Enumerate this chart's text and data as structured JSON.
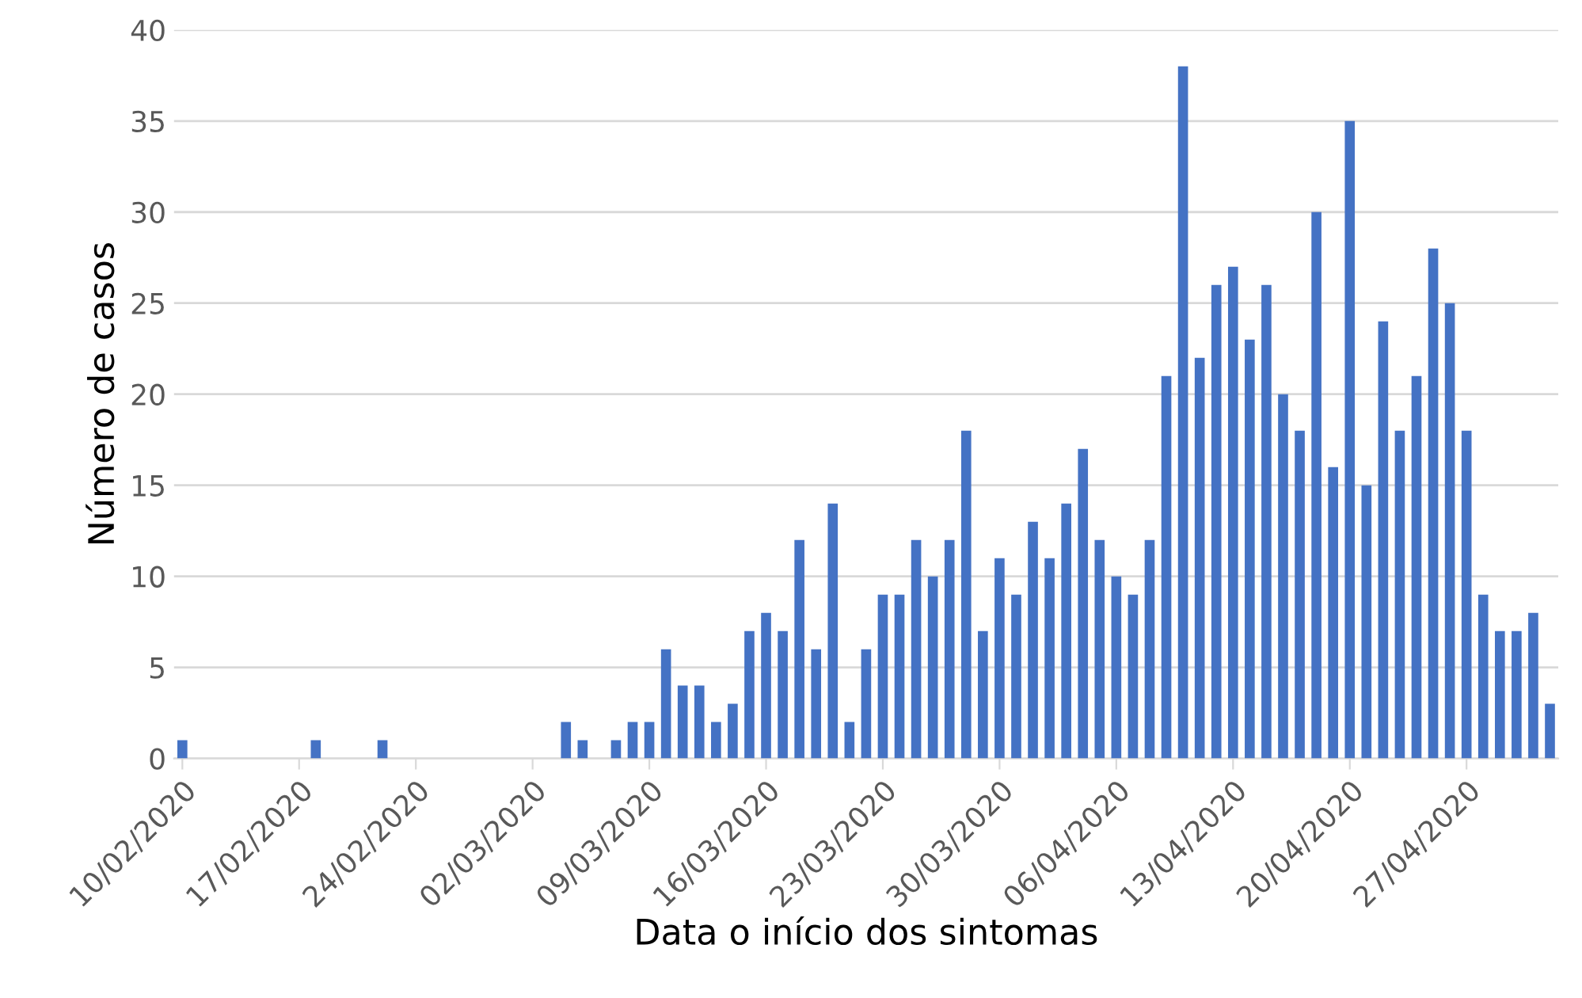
{
  "chart_data": {
    "type": "bar",
    "xlabel": "Data o início dos sintomas",
    "ylabel": "Número de casos",
    "color": "#4472c4",
    "x": [
      "2020-02-10",
      "2020-02-18",
      "2020-02-22",
      "2020-03-04",
      "2020-03-05",
      "2020-03-07",
      "2020-03-08",
      "2020-03-09",
      "2020-03-10",
      "2020-03-11",
      "2020-03-12",
      "2020-03-13",
      "2020-03-14",
      "2020-03-15",
      "2020-03-16",
      "2020-03-17",
      "2020-03-18",
      "2020-03-19",
      "2020-03-20",
      "2020-03-21",
      "2020-03-22",
      "2020-03-23",
      "2020-03-24",
      "2020-03-25",
      "2020-03-26",
      "2020-03-27",
      "2020-03-28",
      "2020-03-29",
      "2020-03-30",
      "2020-03-31",
      "2020-04-01",
      "2020-04-02",
      "2020-04-03",
      "2020-04-04",
      "2020-04-05",
      "2020-04-06",
      "2020-04-07",
      "2020-04-08",
      "2020-04-09",
      "2020-04-10",
      "2020-04-11",
      "2020-04-12",
      "2020-04-13",
      "2020-04-14",
      "2020-04-15",
      "2020-04-16",
      "2020-04-17",
      "2020-04-18",
      "2020-04-19",
      "2020-04-20",
      "2020-04-21",
      "2020-04-22",
      "2020-04-23",
      "2020-04-24",
      "2020-04-25",
      "2020-04-26",
      "2020-04-27",
      "2020-04-28",
      "2020-04-29",
      "2020-04-30",
      "2020-05-01",
      "2020-05-02"
    ],
    "values": [
      1,
      1,
      1,
      2,
      1,
      1,
      2,
      2,
      6,
      4,
      4,
      2,
      3,
      7,
      8,
      7,
      12,
      6,
      14,
      2,
      6,
      9,
      9,
      12,
      10,
      12,
      18,
      7,
      11,
      9,
      13,
      11,
      14,
      17,
      12,
      10,
      9,
      12,
      21,
      38,
      22,
      26,
      27,
      23,
      26,
      20,
      18,
      30,
      16,
      35,
      15,
      24,
      18,
      21,
      28,
      25,
      18,
      9,
      7,
      7,
      8,
      3
    ],
    "xlim": [
      "2020-02-09T12:00",
      "2020-05-02T12:00"
    ],
    "xticks": [
      {
        "value": "2020-02-10",
        "label": "10/02/2020"
      },
      {
        "value": "2020-02-17",
        "label": "17/02/2020"
      },
      {
        "value": "2020-02-24",
        "label": "24/02/2020"
      },
      {
        "value": "2020-03-02",
        "label": "02/03/2020"
      },
      {
        "value": "2020-03-09",
        "label": "09/03/2020"
      },
      {
        "value": "2020-03-16",
        "label": "16/03/2020"
      },
      {
        "value": "2020-03-23",
        "label": "23/03/2020"
      },
      {
        "value": "2020-03-30",
        "label": "30/03/2020"
      },
      {
        "value": "2020-04-06",
        "label": "06/04/2020"
      },
      {
        "value": "2020-04-13",
        "label": "13/04/2020"
      },
      {
        "value": "2020-04-20",
        "label": "20/04/2020"
      },
      {
        "value": "2020-04-27",
        "label": "27/04/2020"
      }
    ],
    "ylim": [
      0,
      40
    ],
    "yticks": [
      0,
      5,
      10,
      15,
      20,
      25,
      30,
      35,
      40
    ],
    "grid": "y"
  }
}
